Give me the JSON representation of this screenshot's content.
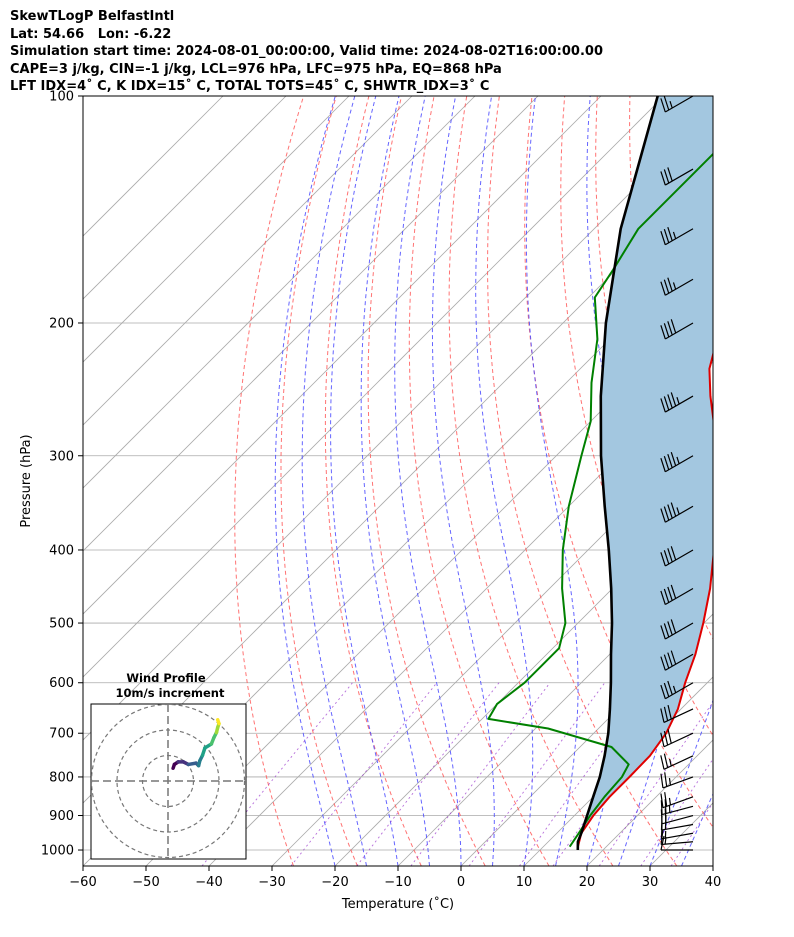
{
  "header": {
    "line1": "SkewTLogP BelfastIntl",
    "line2": "Lat: 54.66   Lon: -6.22",
    "line3": "Simulation start time: 2024-08-01_00:00:00, Valid time: 2024-08-02T16:00:00.00",
    "line4": "CAPE=3 j/kg, CIN=-1 j/kg, LCL=976 hPa, LFC=975 hPa, EQ=868 hPa",
    "line5": "LFT IDX=4˚ C, K IDX=15˚ C, TOTAL TOTS=45˚ C, SHWTR_IDX=3˚ C"
  },
  "hodograph": {
    "title": "Wind Profile",
    "subtitle": "10m/s increment"
  },
  "chart_data": {
    "type": "line",
    "xlabel": "Temperature (˚C)",
    "ylabel": "Pressure (hPa)",
    "xlim": [
      -60,
      40
    ],
    "ylim": [
      1050,
      100
    ],
    "y_scale": "log",
    "x_ticks": [
      -60,
      -50,
      -40,
      -30,
      -20,
      -10,
      0,
      10,
      20,
      30,
      40
    ],
    "y_ticks": [
      1000,
      900,
      800,
      700,
      600,
      500,
      400,
      300,
      200,
      100
    ],
    "grid": true,
    "colors": {
      "temperature": "#e00000",
      "dewpoint": "#008000",
      "parcel": "#000000",
      "cape_fill": "#a3c7e0",
      "dry_adiabat": "#ff5a5a",
      "moist_adiabat": "#4a4aff",
      "mixing_ratio": "#9933cc",
      "isotherm": "#aaaaaa"
    },
    "series": [
      {
        "key": "temperature",
        "pressure": [
          990,
          950,
          900,
          850,
          800,
          750,
          700,
          650,
          600,
          550,
          500,
          450,
          400,
          350,
          300,
          270,
          250,
          230,
          210,
          190,
          170,
          150,
          130,
          115,
          100
        ],
        "values": [
          15.5,
          13.9,
          13.0,
          12.6,
          12.6,
          12.5,
          11.5,
          9.5,
          6.5,
          3.6,
          -0.1,
          -4.5,
          -10.0,
          -16.5,
          -24.5,
          -30.5,
          -35.0,
          -39.5,
          -43.0,
          -45.0,
          -48.5,
          -53.5,
          -58.5,
          -64.0,
          -70.0
        ]
      },
      {
        "key": "dewpoint",
        "pressure": [
          990,
          950,
          900,
          850,
          800,
          770,
          730,
          690,
          670,
          640,
          600,
          570,
          540,
          500,
          450,
          400,
          350,
          300,
          270,
          240,
          210,
          185,
          170,
          150,
          120,
          100
        ],
        "values": [
          14.2,
          13.5,
          12.5,
          11.8,
          11.4,
          10.5,
          5.0,
          -8.0,
          -19.0,
          -20.0,
          -19.0,
          -19.0,
          -19.0,
          -22.0,
          -28.0,
          -34.0,
          -40.0,
          -46.0,
          -50.0,
          -56.0,
          -62.0,
          -69.0,
          -70.5,
          -73.0,
          -73.0,
          -73.0
        ]
      },
      {
        "key": "parcel",
        "pressure": [
          1000,
          975,
          950,
          900,
          850,
          800,
          750,
          700,
          650,
          600,
          550,
          500,
          450,
          400,
          350,
          300,
          250,
          200,
          150,
          100
        ],
        "values": [
          16.0,
          14.7,
          13.9,
          12.0,
          10.0,
          7.9,
          5.3,
          2.3,
          -1.3,
          -5.3,
          -9.8,
          -14.6,
          -20.2,
          -26.7,
          -34.3,
          -42.9,
          -52.4,
          -63.2,
          -75.8,
          -91.0
        ]
      }
    ],
    "wind_barbs": {
      "pressure": [
        1000,
        975,
        950,
        925,
        900,
        875,
        850,
        800,
        750,
        700,
        650,
        600,
        550,
        500,
        450,
        400,
        350,
        300,
        250,
        200,
        175,
        150,
        125,
        100
      ],
      "speed_kt": [
        10,
        15,
        15,
        20,
        20,
        25,
        25,
        25,
        25,
        30,
        30,
        35,
        40,
        40,
        40,
        40,
        45,
        45,
        45,
        40,
        35,
        35,
        30,
        25
      ],
      "direction_deg": [
        270,
        265,
        260,
        260,
        255,
        255,
        250,
        250,
        245,
        245,
        245,
        240,
        240,
        240,
        240,
        240,
        240,
        240,
        240,
        240,
        240,
        240,
        240,
        240
      ]
    },
    "hodograph_path": {
      "u": [
        2,
        2.5,
        4,
        6,
        8,
        11,
        12,
        12.5,
        13.5,
        14.5,
        17,
        18,
        19,
        19.5,
        20,
        19.5
      ],
      "v": [
        5,
        6.5,
        7.5,
        7.5,
        6.5,
        7,
        6,
        8,
        10,
        13,
        14.5,
        17,
        19,
        21,
        22.5,
        24
      ]
    }
  }
}
